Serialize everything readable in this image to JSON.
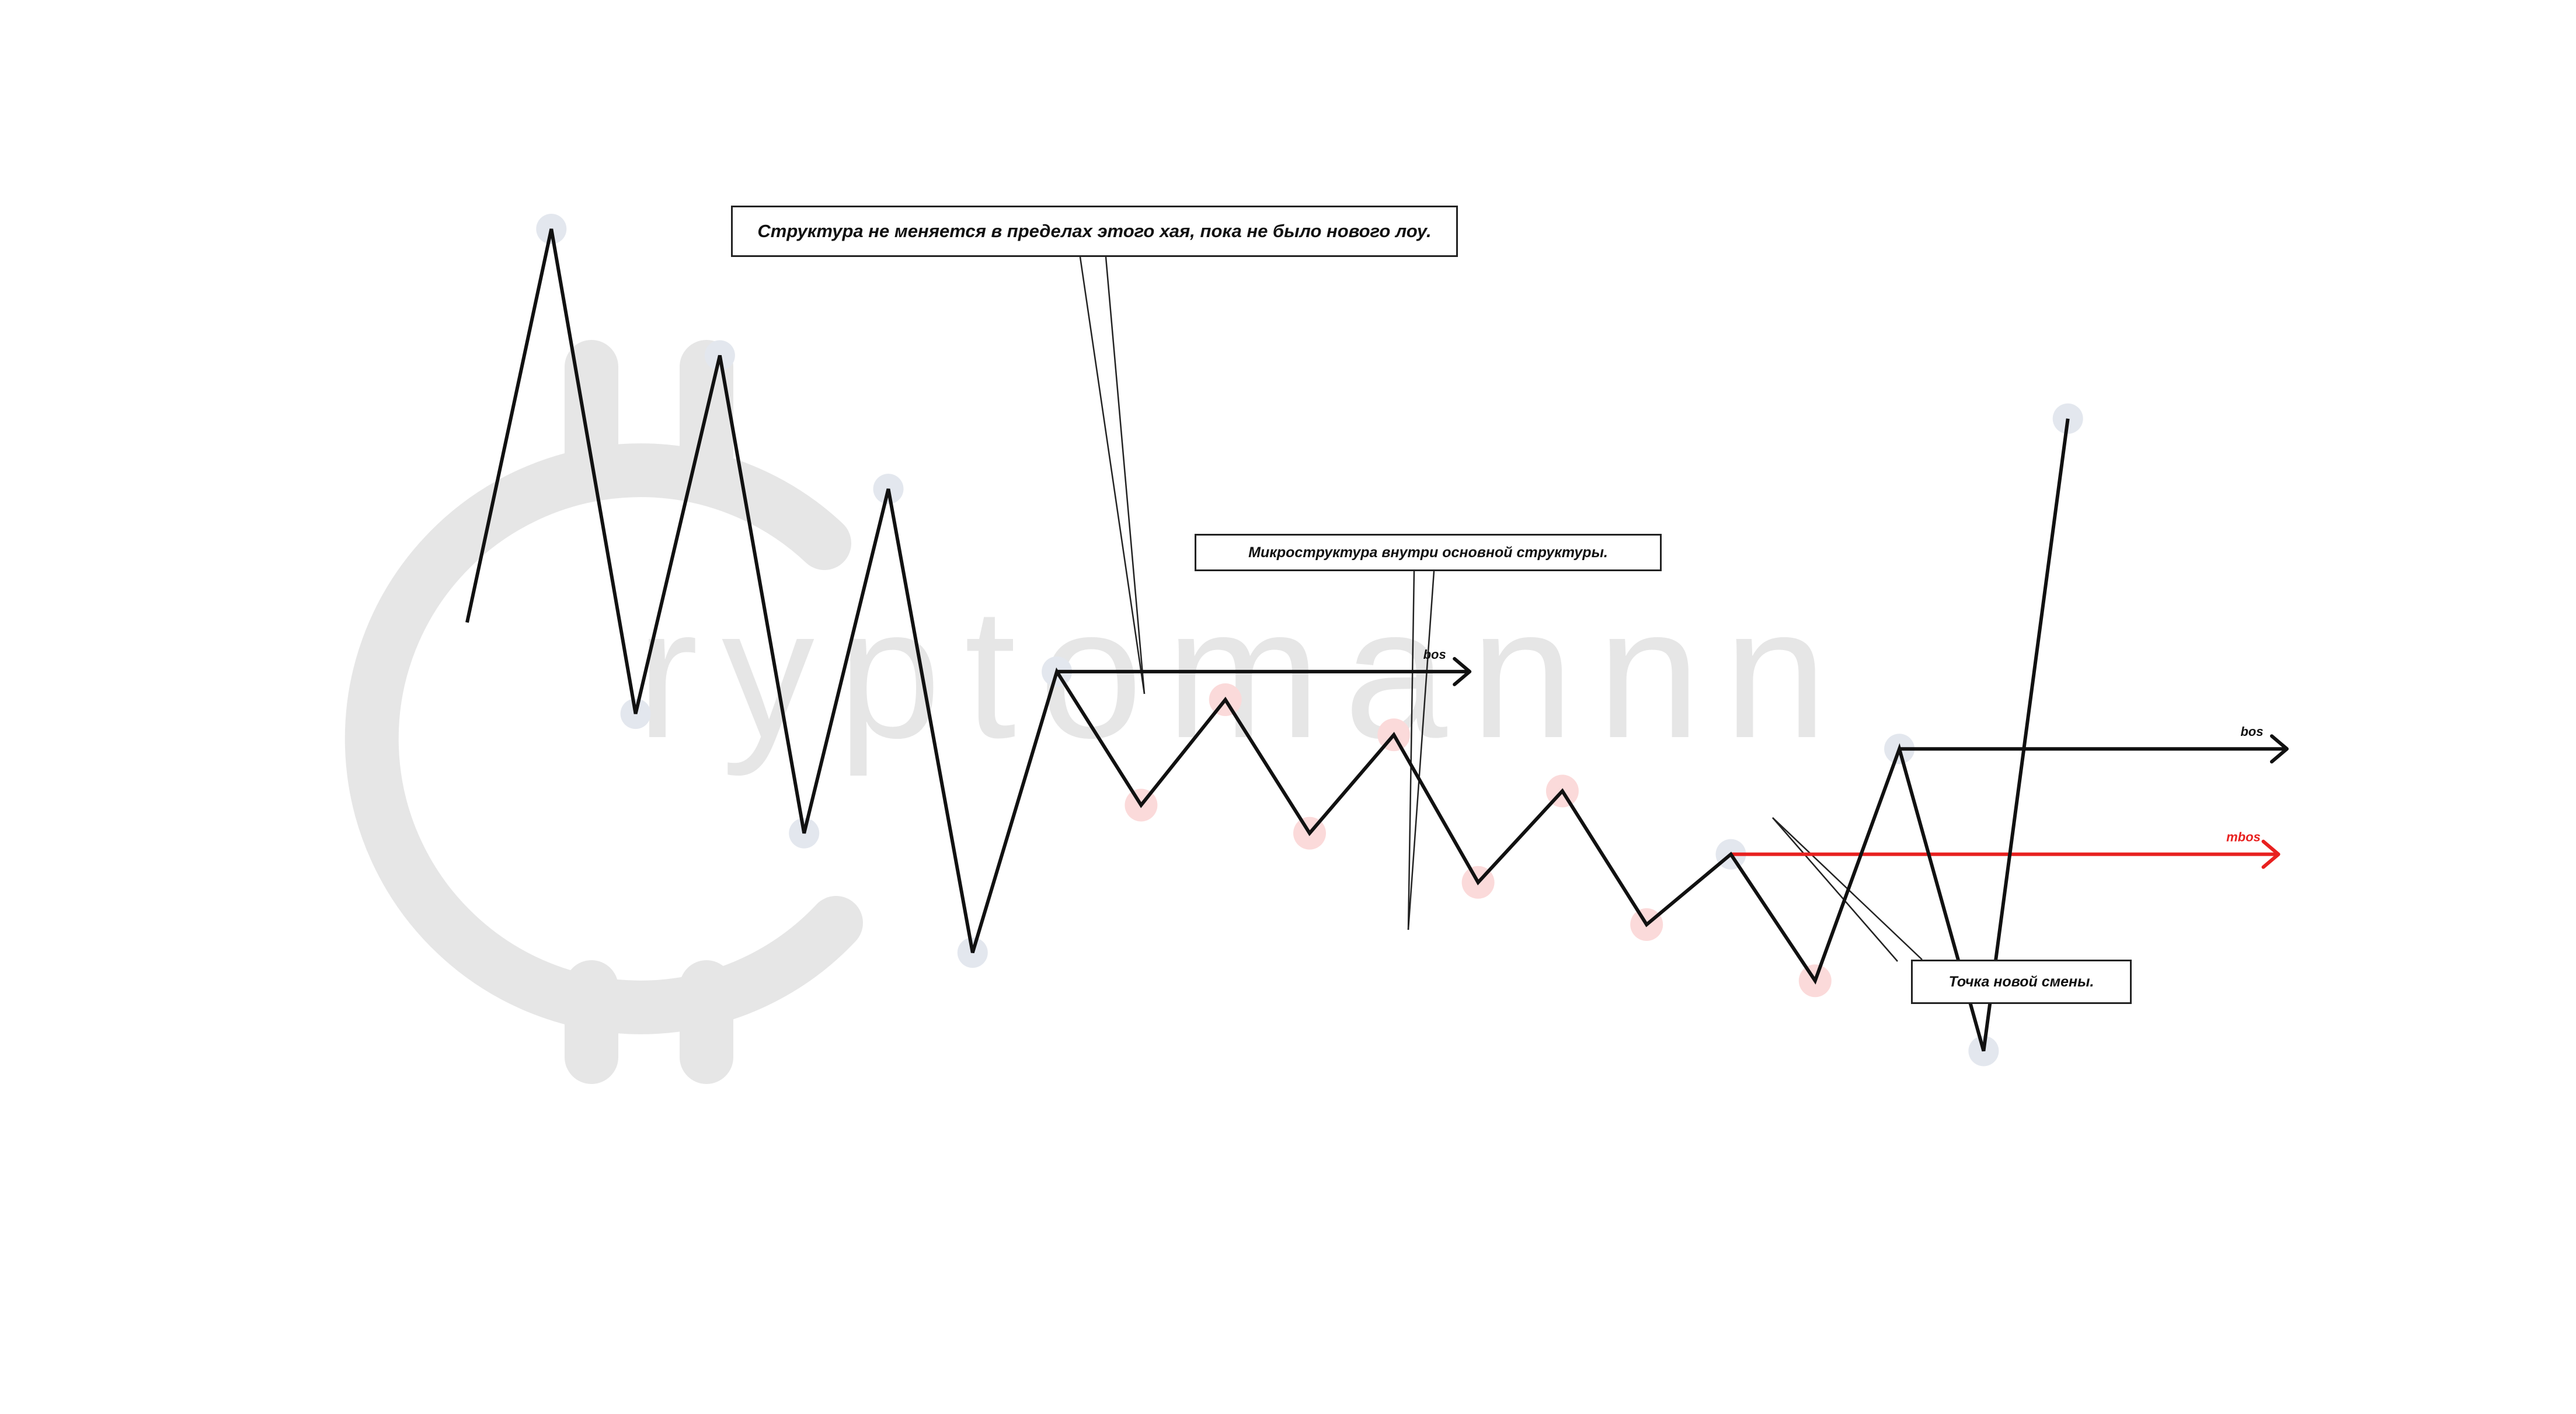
{
  "watermark": {
    "text": "Cryptomannn",
    "color": "#e6e6e6"
  },
  "annotations": {
    "structure_note": "Структура не меняется в пределах этого хая, пока не было нового лоу.",
    "micro_note": "Микроструктура внутри основной структуры.",
    "new_change_note": "Точка новой смены.",
    "bos_label_1": "bos",
    "bos_label_2": "bos",
    "mbos_label": "mbos"
  },
  "colors": {
    "line": "#111111",
    "major_pivot": "#e3e7ee",
    "micro_pivot": "#fbdada",
    "mbos": "#e8201f",
    "note_border": "#222222"
  },
  "chart_data": {
    "type": "line",
    "title": "",
    "xlabel": "",
    "ylabel": "",
    "major_pivots_index": [
      1,
      2,
      3,
      4,
      5,
      6,
      7,
      15,
      17,
      18,
      19
    ],
    "micro_pivots_index": [
      8,
      9,
      10,
      11,
      12,
      13,
      14,
      16
    ],
    "price_path": [
      {
        "t": 0,
        "p": 44
      },
      {
        "t": 1,
        "p": 100
      },
      {
        "t": 2,
        "p": 31
      },
      {
        "t": 3,
        "p": 82
      },
      {
        "t": 4,
        "p": 14
      },
      {
        "t": 5,
        "p": 63
      },
      {
        "t": 6,
        "p": -3
      },
      {
        "t": 7,
        "p": 37
      },
      {
        "t": 8,
        "p": 18
      },
      {
        "t": 9,
        "p": 33
      },
      {
        "t": 10,
        "p": 14
      },
      {
        "t": 11,
        "p": 28
      },
      {
        "t": 12,
        "p": 7
      },
      {
        "t": 13,
        "p": 20
      },
      {
        "t": 14,
        "p": 1
      },
      {
        "t": 15,
        "p": 11
      },
      {
        "t": 16,
        "p": -7
      },
      {
        "t": 17,
        "p": 26
      },
      {
        "t": 18,
        "p": -17
      },
      {
        "t": 19,
        "p": 73
      }
    ],
    "levels": [
      {
        "kind": "bos",
        "from_t": 7,
        "to_t": 11.9,
        "p": 37
      },
      {
        "kind": "bos",
        "from_t": 17,
        "to_t": 21.6,
        "p": 26
      },
      {
        "kind": "mbos",
        "from_t": 15,
        "to_t": 21.5,
        "p": 11
      }
    ]
  }
}
